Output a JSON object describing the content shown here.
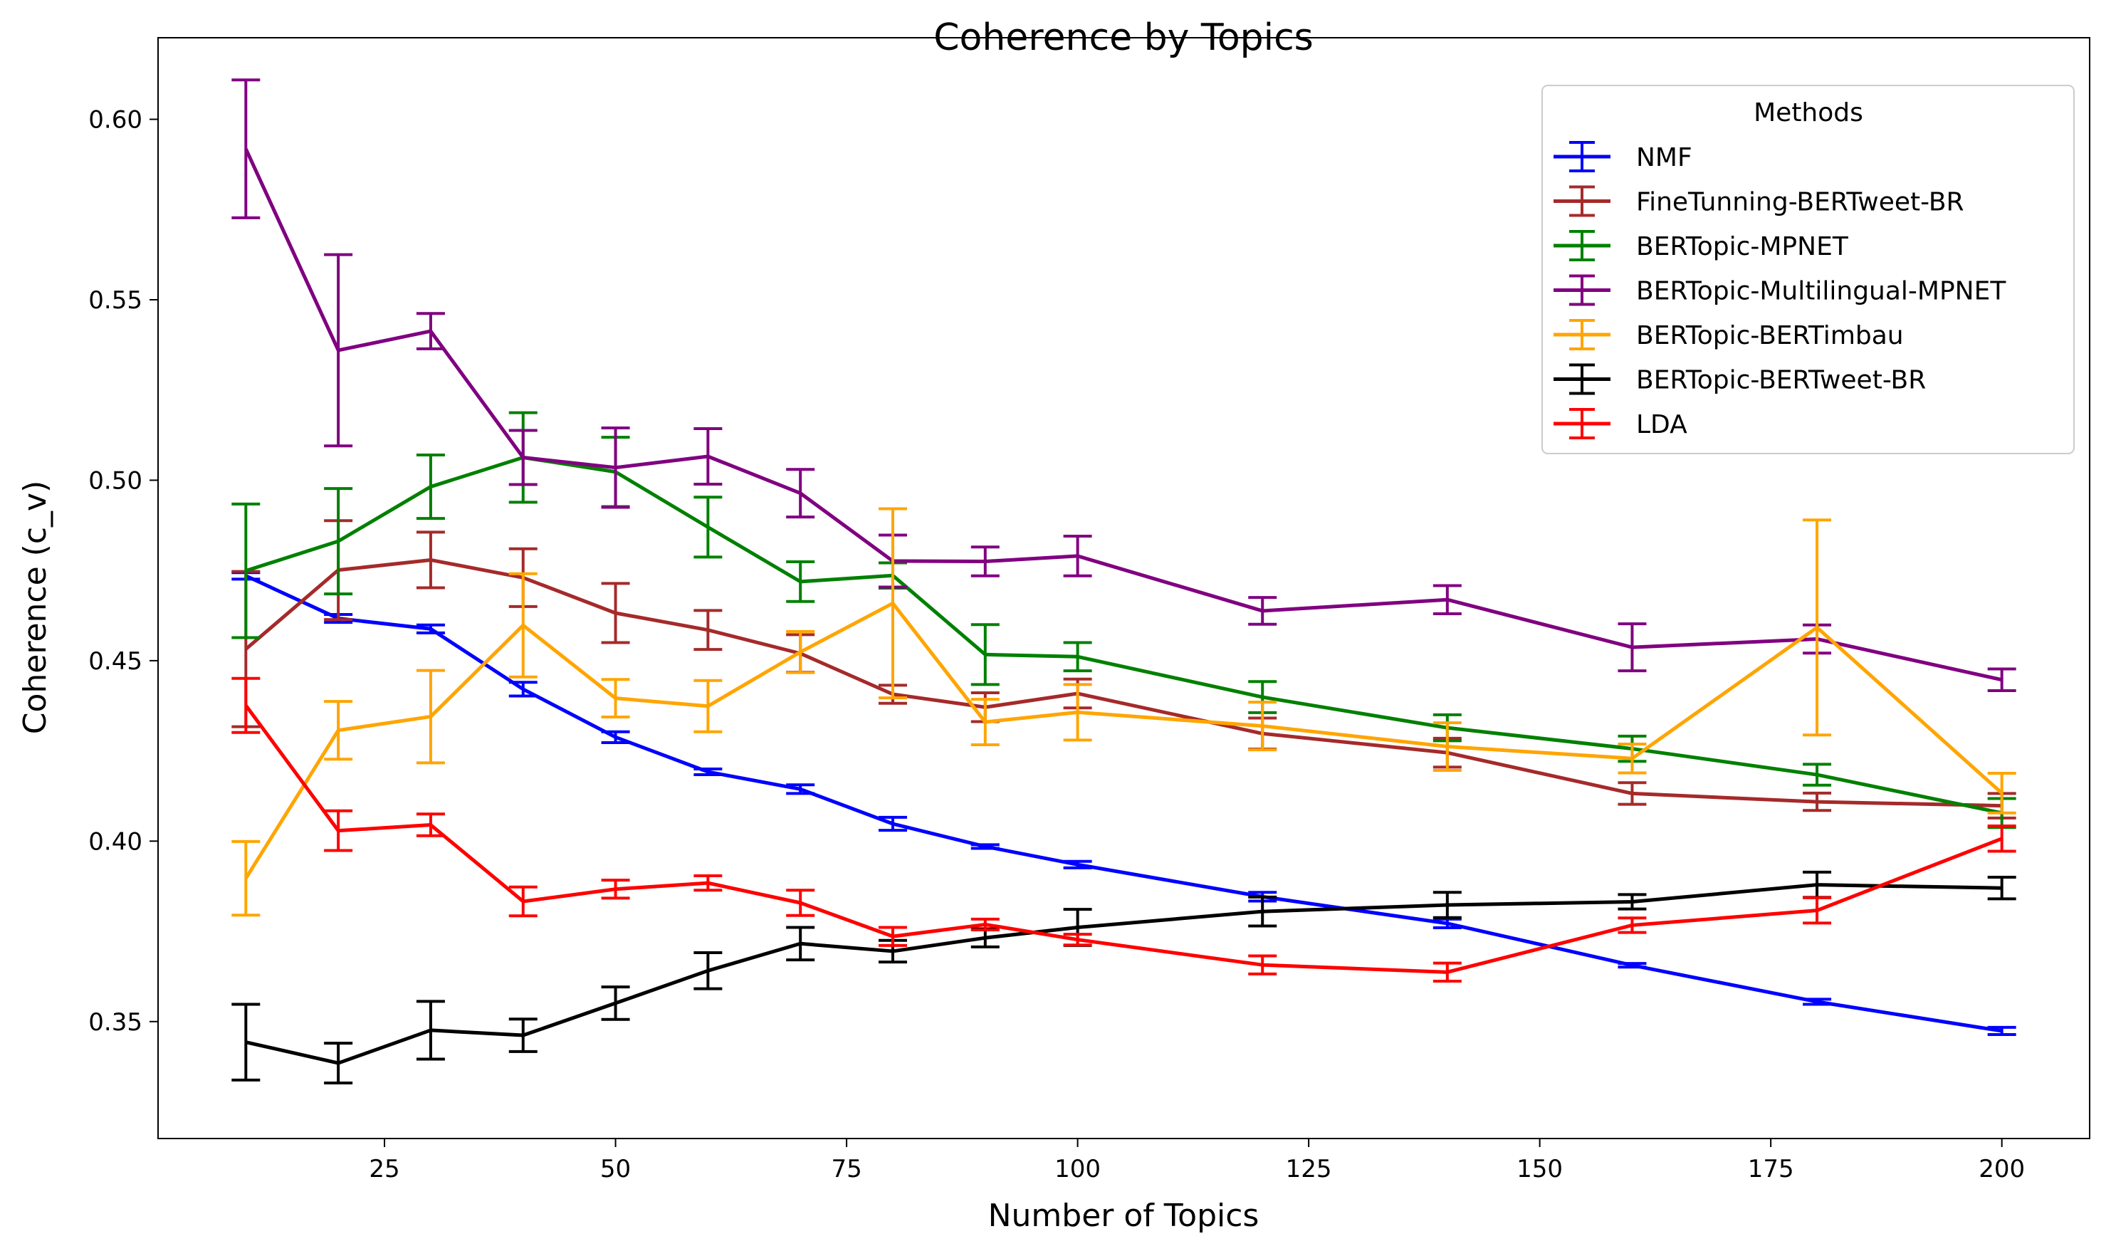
{
  "chart_data": {
    "type": "line",
    "title": "Coherence by Topics",
    "xlabel": "Number of Topics",
    "ylabel": "Coherence (c_v)",
    "xlim": [
      0.5,
      209.5
    ],
    "ylim": [
      0.3176,
      0.6226
    ],
    "xticks": [
      25,
      50,
      75,
      100,
      125,
      150,
      175,
      200
    ],
    "yticks": [
      0.35,
      0.4,
      0.45,
      0.5,
      0.55,
      0.6
    ],
    "ytick_labels": [
      "0.35",
      "0.40",
      "0.45",
      "0.50",
      "0.55",
      "0.60"
    ],
    "grid": false,
    "legend": {
      "title": "Methods",
      "position": "top-right"
    },
    "x": [
      10,
      20,
      30,
      40,
      50,
      60,
      70,
      80,
      90,
      100,
      120,
      140,
      160,
      180,
      200
    ],
    "series": [
      {
        "name": "NMF",
        "color": "#0000ff",
        "values": [
          0.4735,
          0.4617,
          0.4588,
          0.4421,
          0.4288,
          0.4192,
          0.4144,
          0.4048,
          0.3985,
          0.3935,
          0.3846,
          0.3772,
          0.3656,
          0.3555,
          0.3474
        ],
        "errors": [
          0.0009,
          0.0011,
          0.0011,
          0.0019,
          0.0015,
          0.0008,
          0.0012,
          0.0018,
          0.0005,
          0.0009,
          0.0012,
          0.0012,
          0.0005,
          0.0007,
          0.001
        ]
      },
      {
        "name": "FineTunning-BERTweet-BR",
        "color": "#a52a2a",
        "values": [
          0.4532,
          0.4751,
          0.4779,
          0.473,
          0.4632,
          0.4585,
          0.452,
          0.4407,
          0.4371,
          0.4409,
          0.4298,
          0.4245,
          0.4132,
          0.4109,
          0.4098
        ],
        "errors": [
          0.0215,
          0.0137,
          0.0077,
          0.008,
          0.0082,
          0.0054,
          0.0052,
          0.0025,
          0.004,
          0.004,
          0.0043,
          0.004,
          0.003,
          0.0024,
          0.0034
        ]
      },
      {
        "name": "BERTopic-MPNET",
        "color": "#008000",
        "values": [
          0.4749,
          0.4831,
          0.4982,
          0.5063,
          0.5023,
          0.487,
          0.4719,
          0.4736,
          0.4517,
          0.4511,
          0.4399,
          0.4314,
          0.4256,
          0.4184,
          0.4078
        ],
        "errors": [
          0.0185,
          0.0146,
          0.0088,
          0.0124,
          0.0096,
          0.0083,
          0.0055,
          0.0035,
          0.0083,
          0.0039,
          0.0043,
          0.0036,
          0.0035,
          0.0029,
          0.004
        ]
      },
      {
        "name": "BERTopic-Multilingual-MPNET",
        "color": "#800080",
        "values": [
          0.5918,
          0.536,
          0.5413,
          0.5063,
          0.5035,
          0.5066,
          0.4964,
          0.4776,
          0.4775,
          0.479,
          0.4638,
          0.4669,
          0.4537,
          0.456,
          0.4447
        ],
        "errors": [
          0.0191,
          0.0265,
          0.0049,
          0.0075,
          0.011,
          0.0077,
          0.0066,
          0.0072,
          0.004,
          0.0055,
          0.0037,
          0.0039,
          0.0065,
          0.0039,
          0.003
        ]
      },
      {
        "name": "BERTopic-BERTimbau",
        "color": "#ffa500",
        "values": [
          0.3897,
          0.4307,
          0.4345,
          0.4598,
          0.4396,
          0.4374,
          0.4524,
          0.4659,
          0.433,
          0.4357,
          0.4319,
          0.4262,
          0.4229,
          0.4592,
          0.4133
        ],
        "errors": [
          0.0102,
          0.008,
          0.0128,
          0.0143,
          0.0052,
          0.0071,
          0.0057,
          0.0262,
          0.0063,
          0.0077,
          0.0066,
          0.0066,
          0.004,
          0.0298,
          0.0055
        ]
      },
      {
        "name": "BERTopic-BERTweet-BR",
        "color": "#000000",
        "values": [
          0.3443,
          0.3385,
          0.3476,
          0.3462,
          0.3551,
          0.3641,
          0.3716,
          0.3695,
          0.3732,
          0.3761,
          0.3805,
          0.3823,
          0.3832,
          0.3879,
          0.387
        ],
        "errors": [
          0.0105,
          0.0055,
          0.008,
          0.0045,
          0.0045,
          0.005,
          0.0045,
          0.003,
          0.0025,
          0.005,
          0.004,
          0.0035,
          0.002,
          0.0035,
          0.003
        ]
      },
      {
        "name": "LDA",
        "color": "#ff0000",
        "values": [
          0.4376,
          0.4029,
          0.4045,
          0.3833,
          0.3867,
          0.3884,
          0.3829,
          0.3736,
          0.3769,
          0.3727,
          0.3657,
          0.3637,
          0.3767,
          0.3808,
          0.4007
        ],
        "errors": [
          0.0075,
          0.0055,
          0.003,
          0.004,
          0.0025,
          0.002,
          0.0035,
          0.0025,
          0.0015,
          0.0015,
          0.0025,
          0.0025,
          0.002,
          0.0035,
          0.0035
        ]
      }
    ]
  }
}
